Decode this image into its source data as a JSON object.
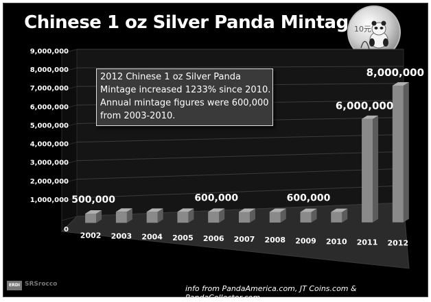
{
  "chart_data": {
    "type": "bar",
    "title": "Chinese 1 oz Silver Panda Mintage",
    "categories": [
      "2002",
      "2003",
      "2004",
      "2005",
      "2006",
      "2007",
      "2008",
      "2009",
      "2010",
      "2011",
      "2012"
    ],
    "values": [
      500000,
      600000,
      600000,
      600000,
      600000,
      600000,
      600000,
      600000,
      600000,
      6000000,
      8000000
    ],
    "ylim": [
      0,
      9000000
    ],
    "yticks": [
      "0",
      "1,000,000",
      "2,000,000",
      "3,000,000",
      "4,000,000",
      "5,000,000",
      "6,000,000",
      "7,000,000",
      "8,000,000",
      "9,000,000"
    ],
    "data_labels": [
      {
        "category": "2002",
        "text": "500,000"
      },
      {
        "category": "2006",
        "text": "600,000"
      },
      {
        "category": "2009",
        "text": "600,000"
      },
      {
        "category": "2011",
        "text": "6,000,000"
      },
      {
        "category": "2012",
        "text": "8,000,000"
      }
    ],
    "annotation": "2012 Chinese 1 oz Silver Panda Mintage increased 1233% since 2010. Annual mintage figures were 600,000 from 2003-2010.",
    "grid": true,
    "bar_color": "#8a8a8a",
    "background_color": "#000000"
  },
  "coin": {
    "denomination": "10元"
  },
  "footer": {
    "logo_tag": "ERDI",
    "logo_text": "SRSrocco",
    "source": "info from PandaAmerica.com, JT Coins.com & PandaCollector.com"
  }
}
